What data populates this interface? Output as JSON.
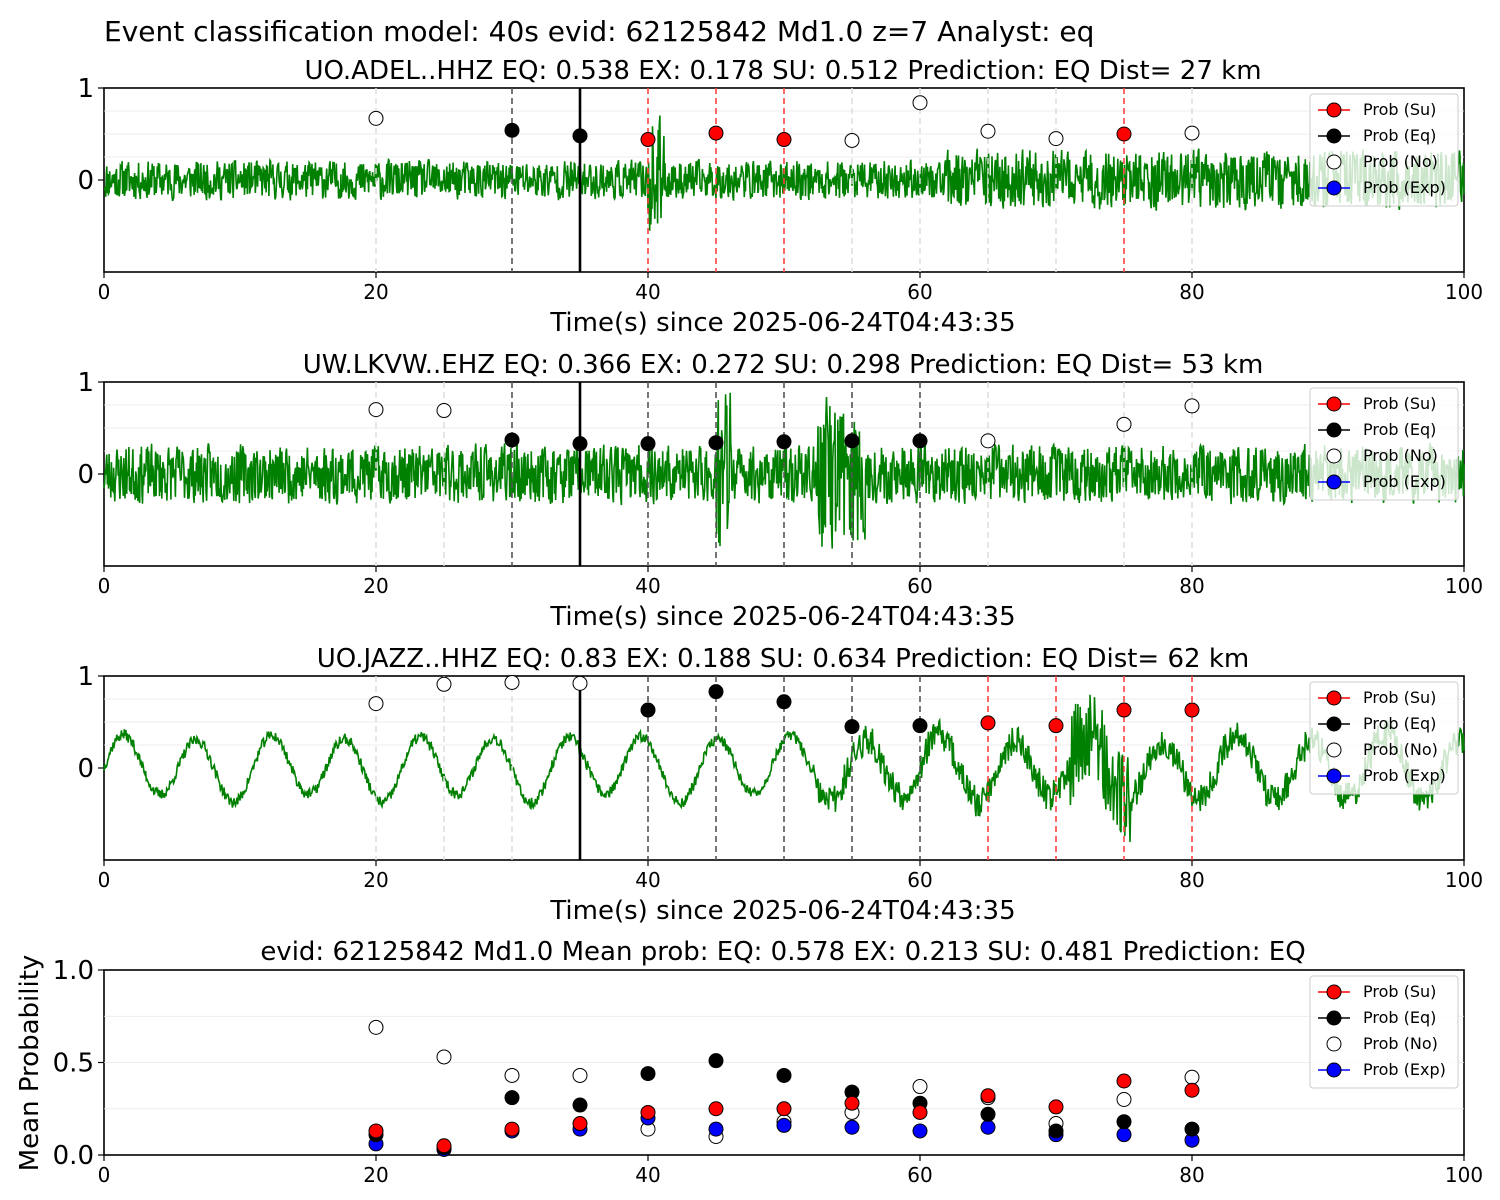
{
  "figure": {
    "suptitle": "Event classification model: 40s evid: 62125842 Md1.0 z=7 Analyst: eq"
  },
  "legend_entries": [
    {
      "label": "Prob (Su)",
      "color": "#ff0000",
      "line": true
    },
    {
      "label": "Prob (Eq)",
      "color": "#000000",
      "line": true
    },
    {
      "label": "Prob (No)",
      "color": "#ffffff",
      "line": false
    },
    {
      "label": "Prob (Exp)",
      "color": "#0000ff",
      "line": true
    }
  ],
  "colors": {
    "trace": "#008000",
    "su": "#ff0000",
    "eq": "#000000",
    "no": "#ffffff",
    "exp": "#0000ff"
  },
  "chart_data": [
    {
      "type": "line",
      "title": "UO.ADEL..HHZ   EQ: 0.538  EX: 0.178  SU: 0.512   Prediction: EQ    Dist= 27 km",
      "xlabel": "Time(s) since 2025-06-24T04:43:35",
      "ylabel": "",
      "xlim": [
        0,
        100
      ],
      "ylim": [
        -1,
        1
      ],
      "xticks": [
        "0",
        "20",
        "40",
        "60",
        "80",
        "100"
      ],
      "yticks": [
        "0",
        "1"
      ],
      "waveform": {
        "style": "noisy",
        "base_amp": 0.2,
        "burst_at": 40,
        "noise_tail": true,
        "seed": 11
      },
      "pick_time": 35,
      "points": [
        {
          "t": 20,
          "class": "No",
          "p": 0.67
        },
        {
          "t": 30,
          "class": "Eq",
          "p": 0.54
        },
        {
          "t": 35,
          "class": "Eq",
          "p": 0.48
        },
        {
          "t": 40,
          "class": "Su",
          "p": 0.44
        },
        {
          "t": 45,
          "class": "Su",
          "p": 0.51
        },
        {
          "t": 50,
          "class": "Su",
          "p": 0.44
        },
        {
          "t": 55,
          "class": "No",
          "p": 0.43
        },
        {
          "t": 60,
          "class": "No",
          "p": 0.84
        },
        {
          "t": 65,
          "class": "No",
          "p": 0.53
        },
        {
          "t": 70,
          "class": "No",
          "p": 0.45
        },
        {
          "t": 75,
          "class": "Su",
          "p": 0.5
        },
        {
          "t": 80,
          "class": "No",
          "p": 0.51
        }
      ]
    },
    {
      "type": "line",
      "title": "UW.LKVW..EHZ   EQ: 0.366  EX: 0.272  SU: 0.298   Prediction: EQ    Dist= 53 km",
      "xlabel": "Time(s) since 2025-06-24T04:43:35",
      "ylabel": "",
      "xlim": [
        0,
        100
      ],
      "ylim": [
        -1,
        1
      ],
      "xticks": [
        "0",
        "20",
        "40",
        "60",
        "80",
        "100"
      ],
      "yticks": [
        "0",
        "1"
      ],
      "waveform": {
        "style": "dense",
        "base_amp": 0.3,
        "burst_at": 45,
        "burst2_at": 54,
        "seed": 23
      },
      "pick_time": 35,
      "points": [
        {
          "t": 20,
          "class": "No",
          "p": 0.7
        },
        {
          "t": 25,
          "class": "No",
          "p": 0.69
        },
        {
          "t": 30,
          "class": "Eq",
          "p": 0.37
        },
        {
          "t": 35,
          "class": "Eq",
          "p": 0.33
        },
        {
          "t": 40,
          "class": "Eq",
          "p": 0.33
        },
        {
          "t": 45,
          "class": "Eq",
          "p": 0.34
        },
        {
          "t": 50,
          "class": "Eq",
          "p": 0.35
        },
        {
          "t": 55,
          "class": "Eq",
          "p": 0.36
        },
        {
          "t": 60,
          "class": "Eq",
          "p": 0.36
        },
        {
          "t": 65,
          "class": "No",
          "p": 0.36
        },
        {
          "t": 75,
          "class": "No",
          "p": 0.54
        },
        {
          "t": 80,
          "class": "No",
          "p": 0.74
        }
      ]
    },
    {
      "type": "line",
      "title": "UO.JAZZ..HHZ   EQ: 0.83  EX: 0.188  SU: 0.634   Prediction: EQ    Dist= 62 km",
      "xlabel": "Time(s) since 2025-06-24T04:43:35",
      "ylabel": "",
      "xlim": [
        0,
        100
      ],
      "ylim": [
        -1,
        1
      ],
      "xticks": [
        "0",
        "20",
        "40",
        "60",
        "80",
        "100"
      ],
      "yticks": [
        "0",
        "1"
      ],
      "waveform": {
        "style": "wavy",
        "base_amp": 0.35,
        "burst_at": 55,
        "burst2_at": 73,
        "seed": 37
      },
      "pick_time": 35,
      "points": [
        {
          "t": 20,
          "class": "No",
          "p": 0.7
        },
        {
          "t": 25,
          "class": "No",
          "p": 0.91
        },
        {
          "t": 30,
          "class": "No",
          "p": 0.93
        },
        {
          "t": 35,
          "class": "No",
          "p": 0.92
        },
        {
          "t": 40,
          "class": "Eq",
          "p": 0.63
        },
        {
          "t": 45,
          "class": "Eq",
          "p": 0.83
        },
        {
          "t": 50,
          "class": "Eq",
          "p": 0.72
        },
        {
          "t": 55,
          "class": "Eq",
          "p": 0.45
        },
        {
          "t": 60,
          "class": "Eq",
          "p": 0.46
        },
        {
          "t": 65,
          "class": "Su",
          "p": 0.49
        },
        {
          "t": 70,
          "class": "Su",
          "p": 0.46
        },
        {
          "t": 75,
          "class": "Su",
          "p": 0.63
        },
        {
          "t": 80,
          "class": "Su",
          "p": 0.63
        }
      ]
    },
    {
      "type": "scatter",
      "title": "evid: 62125842  Md1.0   Mean prob:   EQ: 0.578  EX: 0.213  SU: 0.481   Prediction: EQ",
      "xlabel": "",
      "ylabel": "Mean Probability",
      "xlim": [
        0,
        100
      ],
      "ylim": [
        0,
        1
      ],
      "xticks": [
        "0",
        "20",
        "40",
        "60",
        "80",
        "100"
      ],
      "yticks": [
        "0.0",
        "0.5",
        "1.0"
      ],
      "x": [
        20,
        25,
        30,
        35,
        40,
        45,
        50,
        55,
        60,
        65,
        70,
        75,
        80
      ],
      "series": [
        {
          "name": "Prob (Su)",
          "values": [
            0.13,
            0.05,
            0.14,
            0.17,
            0.23,
            0.25,
            0.25,
            0.28,
            0.23,
            0.32,
            0.26,
            0.4,
            0.35
          ]
        },
        {
          "name": "Prob (Eq)",
          "values": [
            0.11,
            0.04,
            0.31,
            0.27,
            0.44,
            0.51,
            0.43,
            0.34,
            0.28,
            0.22,
            0.13,
            0.18,
            0.14
          ]
        },
        {
          "name": "Prob (No)",
          "values": [
            0.69,
            0.53,
            0.43,
            0.43,
            0.14,
            0.1,
            0.18,
            0.23,
            0.37,
            0.31,
            0.17,
            0.3,
            0.42
          ]
        },
        {
          "name": "Prob (Exp)",
          "values": [
            0.06,
            0.03,
            0.13,
            0.14,
            0.2,
            0.14,
            0.16,
            0.15,
            0.13,
            0.15,
            0.11,
            0.11,
            0.08
          ]
        }
      ]
    }
  ]
}
